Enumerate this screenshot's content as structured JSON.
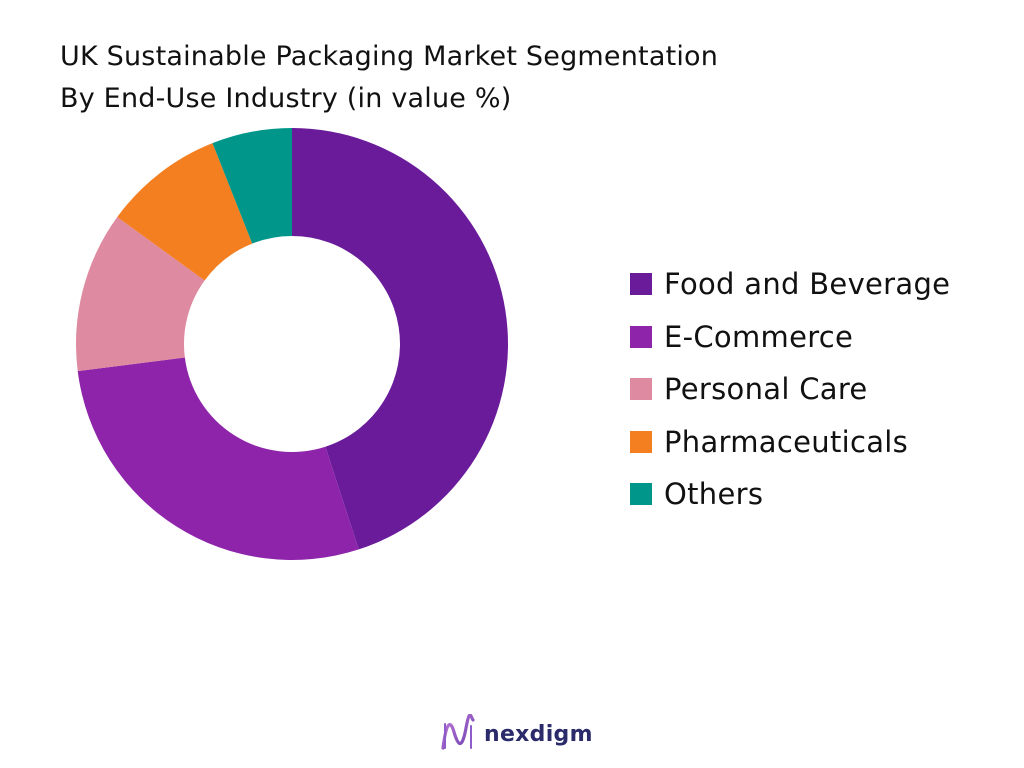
{
  "chart_data": {
    "type": "pie",
    "title": "UK Sustainable Packaging Market Segmentation",
    "subtitle": "By End-Use Industry (in value %)",
    "categories": [
      "Food and Beverage",
      "E-Commerce",
      "Personal Care",
      "Pharmaceuticals",
      "Others"
    ],
    "values": [
      45,
      28,
      12,
      9,
      6
    ],
    "colors": [
      "#6a1b9a",
      "#8e24aa",
      "#de8aa0",
      "#f47f20",
      "#00968a"
    ],
    "donut": true,
    "legend_position": "right"
  },
  "brand": {
    "name": "nexdigm"
  }
}
